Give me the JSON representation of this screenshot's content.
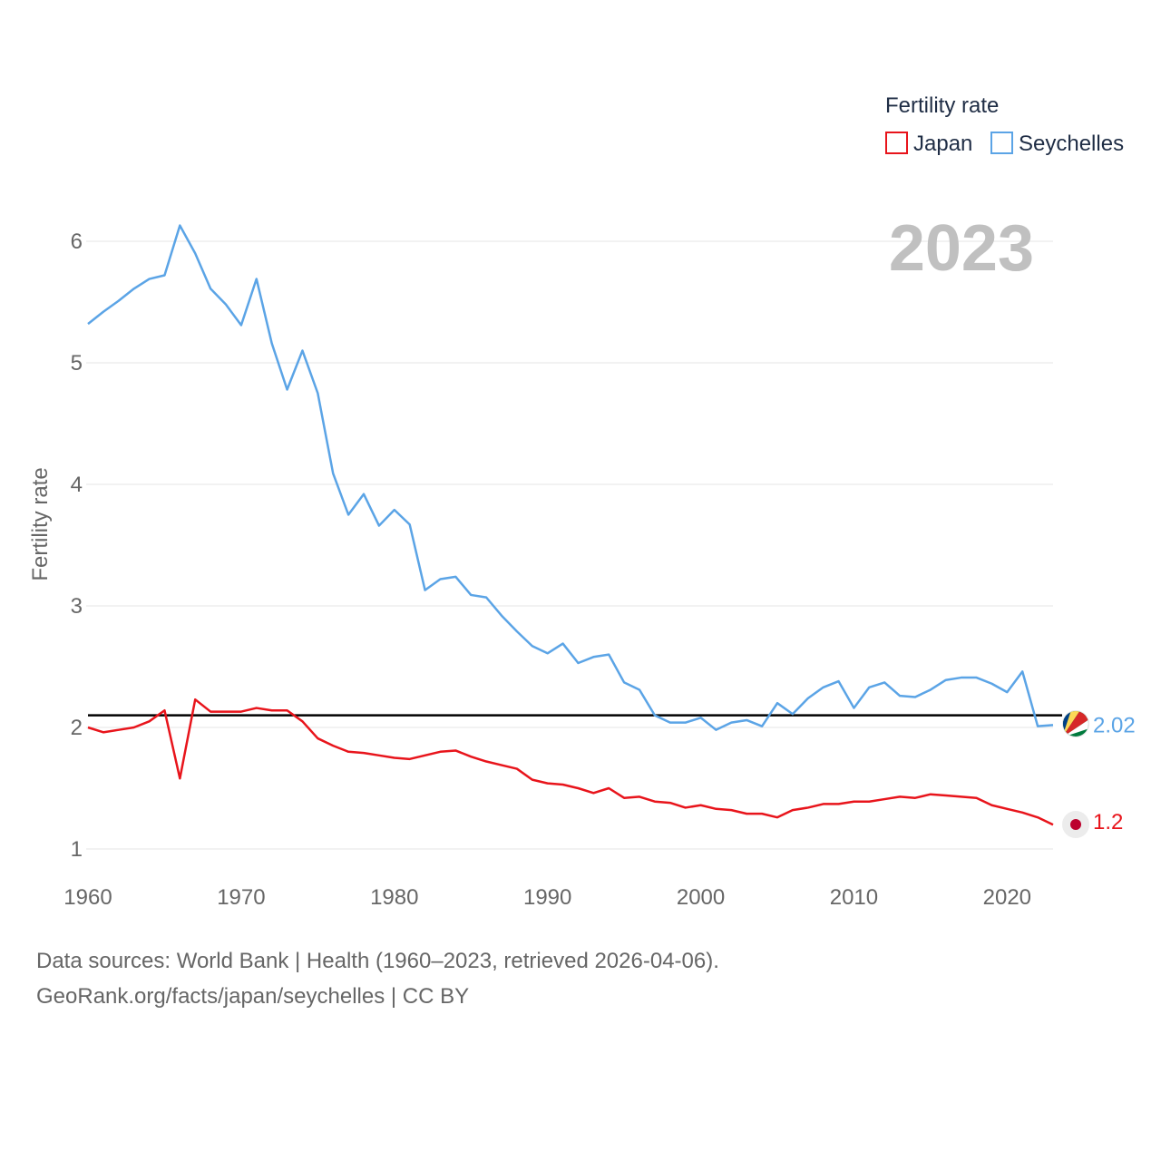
{
  "chart_data": {
    "type": "line",
    "legend_title": "Fertility rate",
    "ylabel": "Fertility rate",
    "xlabel": "",
    "year_label": "2023",
    "xlim": [
      1960,
      2023
    ],
    "ylim": [
      0.75,
      6.25
    ],
    "x_ticks": [
      1960,
      1970,
      1980,
      1990,
      2000,
      2010,
      2020
    ],
    "y_ticks": [
      1,
      2,
      3,
      4,
      5,
      6
    ],
    "reference_line": 2.1,
    "legend_position": "top-right",
    "x": [
      1960,
      1961,
      1962,
      1963,
      1964,
      1965,
      1966,
      1967,
      1968,
      1969,
      1970,
      1971,
      1972,
      1973,
      1974,
      1975,
      1976,
      1977,
      1978,
      1979,
      1980,
      1981,
      1982,
      1983,
      1984,
      1985,
      1986,
      1987,
      1988,
      1989,
      1990,
      1991,
      1992,
      1993,
      1994,
      1995,
      1996,
      1997,
      1998,
      1999,
      2000,
      2001,
      2002,
      2003,
      2004,
      2005,
      2006,
      2007,
      2008,
      2009,
      2010,
      2011,
      2012,
      2013,
      2014,
      2015,
      2016,
      2017,
      2018,
      2019,
      2020,
      2021,
      2022,
      2023
    ],
    "series": [
      {
        "name": "Japan",
        "color": "#e8141b",
        "end_label": "1.2",
        "values": [
          2.0,
          1.96,
          1.98,
          2.0,
          2.05,
          2.14,
          1.58,
          2.23,
          2.13,
          2.13,
          2.13,
          2.16,
          2.14,
          2.14,
          2.05,
          1.91,
          1.85,
          1.8,
          1.79,
          1.77,
          1.75,
          1.74,
          1.77,
          1.8,
          1.81,
          1.76,
          1.72,
          1.69,
          1.66,
          1.57,
          1.54,
          1.53,
          1.5,
          1.46,
          1.5,
          1.42,
          1.43,
          1.39,
          1.38,
          1.34,
          1.36,
          1.33,
          1.32,
          1.29,
          1.29,
          1.26,
          1.32,
          1.34,
          1.37,
          1.37,
          1.39,
          1.39,
          1.41,
          1.43,
          1.42,
          1.45,
          1.44,
          1.43,
          1.42,
          1.36,
          1.33,
          1.3,
          1.26,
          1.2
        ]
      },
      {
        "name": "Seychelles",
        "color": "#5ba4e6",
        "end_label": "2.02",
        "values": [
          5.32,
          5.42,
          5.51,
          5.61,
          5.69,
          5.72,
          6.13,
          5.9,
          5.61,
          5.48,
          5.31,
          5.69,
          5.16,
          4.78,
          5.1,
          4.75,
          4.09,
          3.75,
          3.92,
          3.66,
          3.79,
          3.67,
          3.13,
          3.22,
          3.24,
          3.09,
          3.07,
          2.92,
          2.79,
          2.67,
          2.61,
          2.69,
          2.53,
          2.58,
          2.6,
          2.37,
          2.31,
          2.1,
          2.04,
          2.04,
          2.08,
          1.98,
          2.04,
          2.06,
          2.01,
          2.2,
          2.11,
          2.24,
          2.33,
          2.38,
          2.16,
          2.33,
          2.37,
          2.26,
          2.25,
          2.31,
          2.39,
          2.41,
          2.41,
          2.36,
          2.29,
          2.46,
          2.01,
          2.02
        ]
      }
    ]
  },
  "footer": {
    "line1": "Data sources: World Bank | Health (1960–2023, retrieved 2026-04-06).",
    "line2": "GeoRank.org/facts/japan/seychelles | CC BY"
  }
}
